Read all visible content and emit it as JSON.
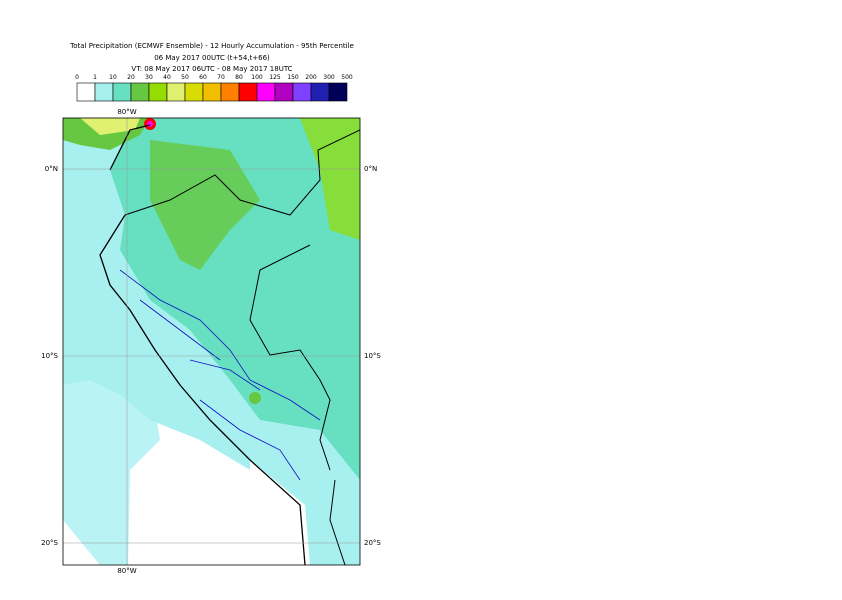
{
  "title": [
    "Total Precipitation (ECMWF Ensemble) - 12 Hourly Accumulation - 95th Percentile",
    "06 May 2017 00UTC (t+54,t+66)",
    "VT: 08 May 2017 06UTC - 08 May 2017 18UTC"
  ],
  "legend": {
    "labels": [
      "0",
      "1",
      "10",
      "20",
      "30",
      "40",
      "50",
      "60",
      "70",
      "80",
      "100",
      "125",
      "150",
      "200",
      "300",
      "500"
    ],
    "colors": [
      "#ffffff",
      "#a8f0f0",
      "#66e0c0",
      "#66c840",
      "#96dc00",
      "#e0f070",
      "#d8dc00",
      "#f0c000",
      "#ff8000",
      "#ff0000",
      "#ff00ff",
      "#b000c0",
      "#8040ff",
      "#2020b0",
      "#000058"
    ]
  },
  "map": {
    "lon_label_top": "80°W",
    "lon_label_bottom": "80°W",
    "lat_labels": [
      "0°N",
      "10°S",
      "20°S"
    ]
  }
}
